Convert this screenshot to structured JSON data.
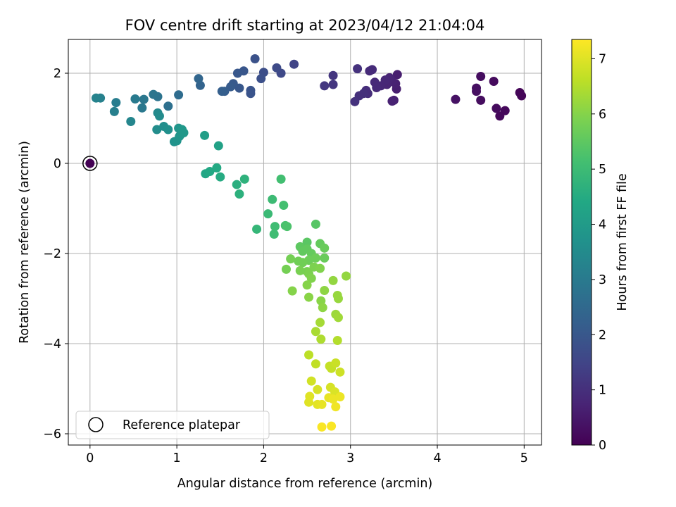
{
  "chart_data": {
    "type": "scatter",
    "title": "FOV centre drift starting at 2023/04/12 21:04:04",
    "xlabel": "Angular distance from reference (arcmin)",
    "ylabel": "Rotation from reference (arcmin)",
    "xlim": [
      -0.25,
      5.2
    ],
    "ylim": [
      -6.25,
      2.75
    ],
    "xticks": [
      0,
      1,
      2,
      3,
      4,
      5
    ],
    "xtick_labels": [
      "0",
      "1",
      "2",
      "3",
      "4",
      "5"
    ],
    "yticks": [
      -6,
      -4,
      -2,
      0,
      2
    ],
    "ytick_labels": [
      "−6",
      "−4",
      "−2",
      "0",
      "2"
    ],
    "grid": true,
    "colormap": "viridis",
    "colorbar": {
      "label": "Hours from first FF file",
      "range": [
        0,
        7.35
      ],
      "ticks": [
        0,
        1,
        2,
        3,
        4,
        5,
        6,
        7
      ],
      "tick_labels": [
        "0",
        "1",
        "2",
        "3",
        "4",
        "5",
        "6",
        "7"
      ]
    },
    "legend": {
      "placement": "lower-left",
      "entries": [
        "Reference platepar"
      ]
    },
    "reference_point": {
      "x": 0,
      "y": 0
    },
    "points": [
      {
        "x": 0,
        "y": 0,
        "h": 0
      },
      {
        "x": 4.95,
        "y": 1.57,
        "h": 0.1
      },
      {
        "x": 4.97,
        "y": 1.5,
        "h": 0.1
      },
      {
        "x": 4.78,
        "y": 1.17,
        "h": 0.15
      },
      {
        "x": 4.72,
        "y": 1.05,
        "h": 0.15
      },
      {
        "x": 4.68,
        "y": 1.22,
        "h": 0.2
      },
      {
        "x": 4.65,
        "y": 1.82,
        "h": 0.2
      },
      {
        "x": 4.5,
        "y": 1.93,
        "h": 0.25
      },
      {
        "x": 4.5,
        "y": 1.4,
        "h": 0.25
      },
      {
        "x": 4.45,
        "y": 1.6,
        "h": 0.3
      },
      {
        "x": 4.45,
        "y": 1.67,
        "h": 0.3
      },
      {
        "x": 4.21,
        "y": 1.42,
        "h": 0.35
      },
      {
        "x": 3.54,
        "y": 1.97,
        "h": 0.6
      },
      {
        "x": 3.53,
        "y": 1.65,
        "h": 0.6
      },
      {
        "x": 3.52,
        "y": 1.77,
        "h": 0.65
      },
      {
        "x": 3.5,
        "y": 1.4,
        "h": 0.65
      },
      {
        "x": 3.48,
        "y": 1.38,
        "h": 0.7
      },
      {
        "x": 3.48,
        "y": 1.82,
        "h": 0.7
      },
      {
        "x": 3.45,
        "y": 1.9,
        "h": 0.75
      },
      {
        "x": 3.42,
        "y": 1.75,
        "h": 0.75
      },
      {
        "x": 3.4,
        "y": 1.85,
        "h": 0.8
      },
      {
        "x": 3.35,
        "y": 1.72,
        "h": 0.8
      },
      {
        "x": 3.3,
        "y": 1.68,
        "h": 0.85
      },
      {
        "x": 3.28,
        "y": 1.8,
        "h": 0.85
      },
      {
        "x": 3.25,
        "y": 2.08,
        "h": 0.9
      },
      {
        "x": 3.22,
        "y": 2.05,
        "h": 0.9
      },
      {
        "x": 3.2,
        "y": 1.55,
        "h": 0.95
      },
      {
        "x": 3.18,
        "y": 1.62,
        "h": 0.95
      },
      {
        "x": 3.15,
        "y": 1.55,
        "h": 1.0
      },
      {
        "x": 3.1,
        "y": 1.5,
        "h": 1.0
      },
      {
        "x": 3.08,
        "y": 2.1,
        "h": 1.05
      },
      {
        "x": 3.05,
        "y": 1.37,
        "h": 1.05
      },
      {
        "x": 2.8,
        "y": 1.95,
        "h": 1.15
      },
      {
        "x": 2.8,
        "y": 1.75,
        "h": 1.15
      },
      {
        "x": 2.7,
        "y": 1.72,
        "h": 1.2
      },
      {
        "x": 2.35,
        "y": 2.2,
        "h": 1.5
      },
      {
        "x": 2.2,
        "y": 2.0,
        "h": 1.6
      },
      {
        "x": 2.15,
        "y": 2.12,
        "h": 1.65
      },
      {
        "x": 2.0,
        "y": 2.02,
        "h": 1.75
      },
      {
        "x": 1.97,
        "y": 1.88,
        "h": 1.8
      },
      {
        "x": 1.9,
        "y": 2.32,
        "h": 1.85
      },
      {
        "x": 1.85,
        "y": 1.55,
        "h": 1.9
      },
      {
        "x": 1.85,
        "y": 1.62,
        "h": 1.9
      },
      {
        "x": 1.77,
        "y": 2.05,
        "h": 1.95
      },
      {
        "x": 1.7,
        "y": 2.0,
        "h": 2.0
      },
      {
        "x": 1.72,
        "y": 1.67,
        "h": 2.0
      },
      {
        "x": 1.65,
        "y": 1.77,
        "h": 2.05
      },
      {
        "x": 1.62,
        "y": 1.7,
        "h": 2.1
      },
      {
        "x": 1.55,
        "y": 1.6,
        "h": 2.15
      },
      {
        "x": 1.52,
        "y": 1.6,
        "h": 2.2
      },
      {
        "x": 1.27,
        "y": 1.73,
        "h": 2.35
      },
      {
        "x": 1.25,
        "y": 1.88,
        "h": 2.4
      },
      {
        "x": 1.02,
        "y": 1.52,
        "h": 2.6
      },
      {
        "x": 0.9,
        "y": 1.27,
        "h": 2.7
      },
      {
        "x": 0.78,
        "y": 1.48,
        "h": 2.8
      },
      {
        "x": 0.73,
        "y": 1.53,
        "h": 2.85
      },
      {
        "x": 0.62,
        "y": 1.42,
        "h": 2.9
      },
      {
        "x": 0.6,
        "y": 1.23,
        "h": 2.95
      },
      {
        "x": 0.52,
        "y": 1.43,
        "h": 3.0
      },
      {
        "x": 0.3,
        "y": 1.35,
        "h": 3.1
      },
      {
        "x": 0.28,
        "y": 1.15,
        "h": 3.15
      },
      {
        "x": 0.12,
        "y": 1.45,
        "h": 3.2
      },
      {
        "x": 0.07,
        "y": 1.45,
        "h": 3.25
      },
      {
        "x": 0.47,
        "y": 0.93,
        "h": 3.35
      },
      {
        "x": 0.78,
        "y": 1.12,
        "h": 3.45
      },
      {
        "x": 0.8,
        "y": 1.05,
        "h": 3.5
      },
      {
        "x": 0.77,
        "y": 0.75,
        "h": 3.55
      },
      {
        "x": 0.85,
        "y": 0.82,
        "h": 3.6
      },
      {
        "x": 0.9,
        "y": 0.75,
        "h": 3.65
      },
      {
        "x": 0.97,
        "y": 0.48,
        "h": 3.7
      },
      {
        "x": 1.0,
        "y": 0.5,
        "h": 3.75
      },
      {
        "x": 1.02,
        "y": 0.78,
        "h": 3.8
      },
      {
        "x": 1.03,
        "y": 0.6,
        "h": 3.8
      },
      {
        "x": 1.05,
        "y": 0.65,
        "h": 3.85
      },
      {
        "x": 1.08,
        "y": 0.68,
        "h": 3.9
      },
      {
        "x": 1.06,
        "y": 0.75,
        "h": 3.9
      },
      {
        "x": 1.32,
        "y": 0.62,
        "h": 4.1
      },
      {
        "x": 1.48,
        "y": 0.39,
        "h": 4.2
      },
      {
        "x": 1.33,
        "y": -0.23,
        "h": 4.35
      },
      {
        "x": 1.38,
        "y": -0.18,
        "h": 4.4
      },
      {
        "x": 1.46,
        "y": -0.1,
        "h": 4.45
      },
      {
        "x": 1.5,
        "y": -0.3,
        "h": 4.5
      },
      {
        "x": 1.69,
        "y": -0.47,
        "h": 4.6
      },
      {
        "x": 1.72,
        "y": -0.68,
        "h": 4.65
      },
      {
        "x": 1.78,
        "y": -0.35,
        "h": 4.7
      },
      {
        "x": 1.92,
        "y": -1.46,
        "h": 4.85
      },
      {
        "x": 2.05,
        "y": -1.12,
        "h": 4.95
      },
      {
        "x": 2.1,
        "y": -0.8,
        "h": 5.0
      },
      {
        "x": 2.12,
        "y": -1.57,
        "h": 5.05
      },
      {
        "x": 2.13,
        "y": -1.4,
        "h": 5.05
      },
      {
        "x": 2.2,
        "y": -0.35,
        "h": 5.1
      },
      {
        "x": 2.23,
        "y": -0.93,
        "h": 5.15
      },
      {
        "x": 2.25,
        "y": -1.38,
        "h": 5.2
      },
      {
        "x": 2.27,
        "y": -1.4,
        "h": 5.25
      },
      {
        "x": 2.6,
        "y": -1.35,
        "h": 5.4
      },
      {
        "x": 2.5,
        "y": -1.75,
        "h": 5.45
      },
      {
        "x": 2.42,
        "y": -1.85,
        "h": 5.5
      },
      {
        "x": 2.45,
        "y": -1.95,
        "h": 5.55
      },
      {
        "x": 2.5,
        "y": -1.9,
        "h": 5.55
      },
      {
        "x": 2.55,
        "y": -2.0,
        "h": 5.6
      },
      {
        "x": 2.65,
        "y": -1.78,
        "h": 5.6
      },
      {
        "x": 2.7,
        "y": -1.88,
        "h": 5.65
      },
      {
        "x": 2.7,
        "y": -2.1,
        "h": 5.65
      },
      {
        "x": 2.6,
        "y": -2.1,
        "h": 5.7
      },
      {
        "x": 2.52,
        "y": -2.15,
        "h": 5.7
      },
      {
        "x": 2.45,
        "y": -2.2,
        "h": 5.75
      },
      {
        "x": 2.4,
        "y": -2.17,
        "h": 5.75
      },
      {
        "x": 2.31,
        "y": -2.12,
        "h": 5.8
      },
      {
        "x": 2.26,
        "y": -2.35,
        "h": 5.8
      },
      {
        "x": 2.42,
        "y": -2.38,
        "h": 5.85
      },
      {
        "x": 2.5,
        "y": -2.4,
        "h": 5.85
      },
      {
        "x": 2.52,
        "y": -2.45,
        "h": 5.9
      },
      {
        "x": 2.58,
        "y": -2.3,
        "h": 5.9
      },
      {
        "x": 2.65,
        "y": -2.33,
        "h": 5.95
      },
      {
        "x": 2.55,
        "y": -2.55,
        "h": 5.95
      },
      {
        "x": 2.5,
        "y": -2.7,
        "h": 6.0
      },
      {
        "x": 2.33,
        "y": -2.83,
        "h": 6.0
      },
      {
        "x": 2.52,
        "y": -2.97,
        "h": 6.05
      },
      {
        "x": 2.66,
        "y": -3.05,
        "h": 6.05
      },
      {
        "x": 2.68,
        "y": -3.2,
        "h": 6.1
      },
      {
        "x": 2.7,
        "y": -2.82,
        "h": 6.1
      },
      {
        "x": 2.8,
        "y": -2.6,
        "h": 6.15
      },
      {
        "x": 2.95,
        "y": -2.5,
        "h": 6.15
      },
      {
        "x": 2.85,
        "y": -2.93,
        "h": 6.2
      },
      {
        "x": 2.86,
        "y": -3.0,
        "h": 6.2
      },
      {
        "x": 2.83,
        "y": -3.35,
        "h": 6.25
      },
      {
        "x": 2.86,
        "y": -3.42,
        "h": 6.3
      },
      {
        "x": 2.65,
        "y": -3.53,
        "h": 6.35
      },
      {
        "x": 2.6,
        "y": -3.73,
        "h": 6.4
      },
      {
        "x": 2.66,
        "y": -3.9,
        "h": 6.45
      },
      {
        "x": 2.85,
        "y": -3.93,
        "h": 6.5
      },
      {
        "x": 2.52,
        "y": -4.25,
        "h": 6.6
      },
      {
        "x": 2.6,
        "y": -4.45,
        "h": 6.65
      },
      {
        "x": 2.76,
        "y": -4.5,
        "h": 6.7
      },
      {
        "x": 2.78,
        "y": -4.55,
        "h": 6.7
      },
      {
        "x": 2.83,
        "y": -4.43,
        "h": 6.75
      },
      {
        "x": 2.88,
        "y": -4.63,
        "h": 6.8
      },
      {
        "x": 2.55,
        "y": -4.83,
        "h": 6.85
      },
      {
        "x": 2.62,
        "y": -5.02,
        "h": 6.9
      },
      {
        "x": 2.77,
        "y": -4.97,
        "h": 6.9
      },
      {
        "x": 2.82,
        "y": -5.07,
        "h": 6.95
      },
      {
        "x": 2.53,
        "y": -5.17,
        "h": 7.0
      },
      {
        "x": 2.52,
        "y": -5.3,
        "h": 7.0
      },
      {
        "x": 2.62,
        "y": -5.35,
        "h": 7.05
      },
      {
        "x": 2.67,
        "y": -5.35,
        "h": 7.1
      },
      {
        "x": 2.75,
        "y": -5.2,
        "h": 7.1
      },
      {
        "x": 2.8,
        "y": -5.23,
        "h": 7.15
      },
      {
        "x": 2.88,
        "y": -5.18,
        "h": 7.15
      },
      {
        "x": 2.83,
        "y": -5.4,
        "h": 7.2
      },
      {
        "x": 2.67,
        "y": -5.85,
        "h": 7.3
      },
      {
        "x": 2.78,
        "y": -5.83,
        "h": 7.3
      }
    ]
  }
}
